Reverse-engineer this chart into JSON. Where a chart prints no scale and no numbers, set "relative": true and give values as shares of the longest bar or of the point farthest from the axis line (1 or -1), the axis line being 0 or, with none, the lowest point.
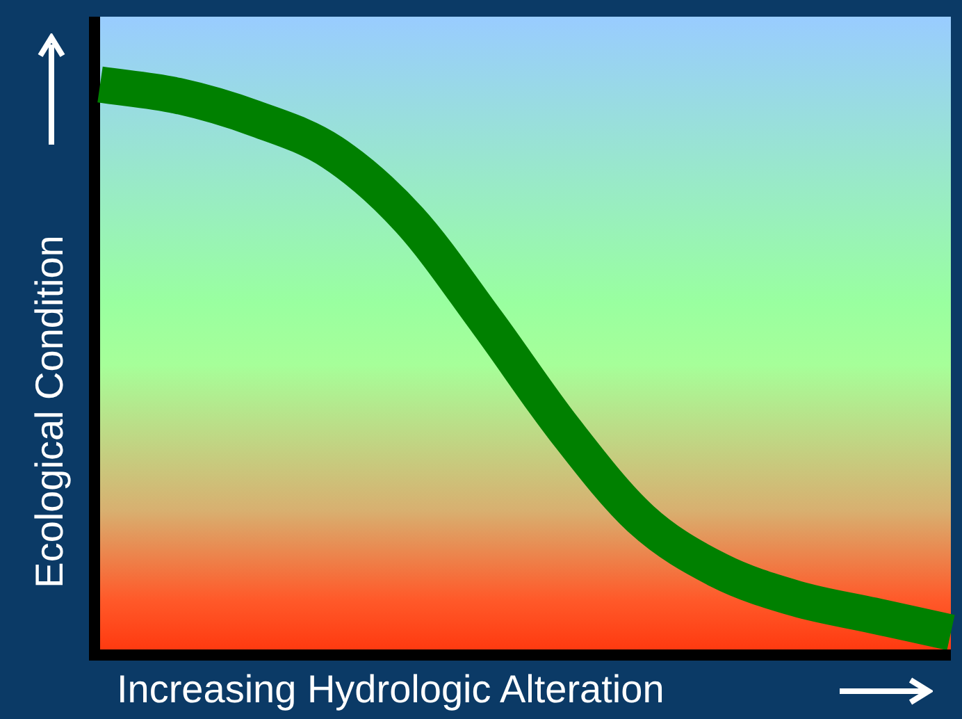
{
  "chart_data": {
    "type": "line",
    "xlabel": "Increasing Hydrologic Alteration",
    "ylabel": "Ecological Condition",
    "relative": true,
    "categories": [
      null,
      null,
      null,
      null,
      null,
      null,
      null,
      null,
      null,
      null,
      null,
      null
    ],
    "series": [
      {
        "color": "#008000",
        "values": [
          1,
          0.98,
          0.94,
          0.88,
          0.76,
          0.58,
          0.39,
          0.23,
          0.14,
          0.09,
          0.06,
          0.03
        ]
      }
    ]
  }
}
